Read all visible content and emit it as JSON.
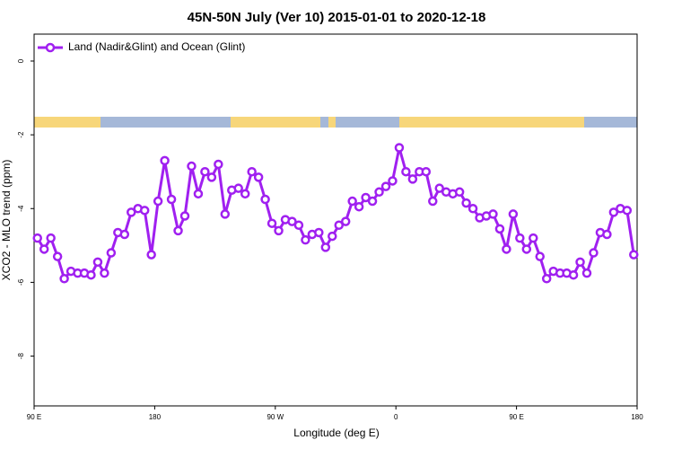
{
  "chart_data": {
    "type": "line",
    "title": "45N-50N July (Ver 10)   2015-01-01 to 2020-12-18",
    "xlabel": "Longitude (deg E)",
    "ylabel": "XCO2 - MLO trend (ppm)",
    "xlim": [
      90,
      540
    ],
    "ylim": [
      -9.35,
      0.73
    ],
    "xticks": [
      {
        "value": 90,
        "label": "90 E"
      },
      180,
      {
        "value": 270,
        "label": "90 W"
      },
      {
        "value": 360,
        "label": "0"
      },
      {
        "value": 450,
        "label": "90 E"
      },
      {
        "value": 540,
        "label": "180"
      }
    ],
    "yticks": [
      -8,
      -6,
      -4,
      -2,
      0
    ],
    "legend": "upper left",
    "x": [
      92.5,
      97.5,
      102.5,
      107.5,
      112.5,
      117.5,
      122.5,
      127.5,
      132.5,
      137.5,
      142.5,
      147.5,
      152.5,
      157.5,
      162.5,
      167.5,
      172.5,
      177.5,
      182.5,
      187.5,
      192.5,
      197.5,
      202.5,
      207.5,
      212.5,
      217.5,
      222.5,
      227.5,
      232.5,
      237.5,
      242.5,
      247.5,
      252.5,
      257.5,
      262.5,
      267.5,
      272.5,
      277.5,
      282.5,
      287.5,
      292.5,
      297.5,
      302.5,
      307.5,
      312.5,
      317.5,
      322.5,
      327.5,
      332.5,
      337.5,
      342.5,
      347.5,
      352.5,
      357.5,
      362.5,
      367.5,
      372.5,
      377.5,
      382.5,
      387.5,
      392.5,
      397.5,
      402.5,
      407.5,
      412.5,
      417.5,
      422.5,
      427.5,
      432.5,
      437.5,
      442.5,
      447.5,
      452.5,
      457.5,
      462.5,
      467.5,
      472.5,
      477.5,
      482.5,
      487.5,
      492.5,
      497.5,
      502.5,
      507.5,
      512.5,
      517.5,
      522.5,
      527.5,
      532.5,
      537.5
    ],
    "series": [
      {
        "name": "Land (Nadir&Glint) and Ocean (Glint)",
        "color": "#a020f0",
        "values": [
          -4.8,
          -5.1,
          -4.8,
          -5.3,
          -5.9,
          -5.7,
          -5.75,
          -5.75,
          -5.8,
          -5.45,
          -5.75,
          -5.2,
          -4.65,
          -4.7,
          -4.1,
          -4.0,
          -4.05,
          -5.25,
          -3.8,
          -2.7,
          -3.75,
          -4.6,
          -4.2,
          -2.85,
          -3.6,
          -3.0,
          -3.15,
          -2.8,
          -4.15,
          -3.5,
          -3.45,
          -3.6,
          -3.0,
          -3.15,
          -3.75,
          -4.4,
          -4.6,
          -4.3,
          -4.35,
          -4.45,
          -4.85,
          -4.7,
          -4.65,
          -5.05,
          -4.75,
          -4.45,
          -4.35,
          -3.8,
          -3.95,
          -3.7,
          -3.8,
          -3.55,
          -3.4,
          -3.25,
          -2.35,
          -3.0,
          -3.2,
          -3.0,
          -3.0,
          -3.8,
          -3.45,
          -3.55,
          -3.6,
          -3.55,
          -3.85,
          -4.0,
          -4.25,
          -4.2,
          -4.15,
          -4.55,
          -5.1,
          -4.15,
          -4.8,
          -5.1,
          -4.8,
          -5.3,
          -5.9,
          -5.7,
          -5.75,
          -5.75,
          -5.8,
          -5.45,
          -5.75,
          -5.2,
          -4.65,
          -4.7,
          -4.1,
          -4.0,
          -4.05,
          -5.25
        ]
      }
    ]
  }
}
